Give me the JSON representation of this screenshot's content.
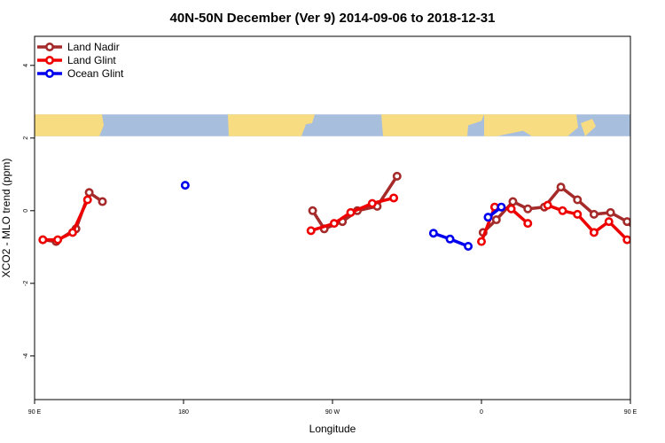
{
  "chart_data": {
    "type": "line",
    "title": "40N-50N December (Ver 9)   2014-09-06 to 2018-12-31",
    "xlabel": "Longitude",
    "ylabel": "XCO2 - MLO trend (ppm)",
    "x_range": [
      90,
      450
    ],
    "ylim": [
      -5.2,
      4.8
    ],
    "x_ticks": [
      {
        "value": 90,
        "label": "90 E"
      },
      {
        "value": 180,
        "label": "180"
      },
      {
        "value": 270,
        "label": "90 W"
      },
      {
        "value": 360,
        "label": "0"
      },
      {
        "value": 450,
        "label": "90 E"
      },
      {
        "value": 540,
        "label": "180"
      }
    ],
    "y_ticks": [
      {
        "value": -4,
        "label": "-4"
      },
      {
        "value": -2,
        "label": "-2"
      },
      {
        "value": 0,
        "label": "0"
      },
      {
        "value": 2,
        "label": "2"
      },
      {
        "value": 4,
        "label": "4"
      }
    ],
    "map_band": {
      "y_from": 2.05,
      "y_to": 2.65,
      "land_color": "#F8DC82",
      "ocean_color": "#A7BEDD"
    },
    "legend_position": "top-left",
    "series": [
      {
        "name": "Land Nadir",
        "color": "#A52A2A",
        "segments": [
          [
            [
              95,
              -0.8
            ],
            [
              103,
              -0.85
            ],
            [
              115,
              -0.5
            ],
            [
              123,
              0.5
            ],
            [
              131,
              0.25
            ]
          ],
          [
            [
              258,
              0
            ],
            [
              265,
              -0.5
            ],
            [
              276,
              -0.3
            ],
            [
              285,
              0
            ],
            [
              297,
              0.12
            ],
            [
              309,
              0.95
            ]
          ],
          [
            [
              361,
              -0.6
            ],
            [
              369,
              -0.25
            ],
            [
              379,
              0.25
            ],
            [
              388,
              0.05
            ],
            [
              398,
              0.1
            ],
            [
              408,
              0.65
            ],
            [
              418,
              0.3
            ],
            [
              428,
              -0.1
            ],
            [
              438,
              -0.05
            ],
            [
              448,
              -0.3
            ],
            [
              458,
              -0.8
            ],
            [
              468,
              -0.8
            ],
            [
              477,
              -0.55
            ],
            [
              487,
              0.5
            ],
            [
              496,
              0.25
            ]
          ]
        ]
      },
      {
        "name": "Land Glint",
        "color": "#EE0000",
        "segments": [
          [
            [
              95,
              -0.8
            ],
            [
              104,
              -0.8
            ],
            [
              113,
              -0.6
            ],
            [
              122,
              0.3
            ]
          ],
          [
            [
              257,
              -0.55
            ],
            [
              271,
              -0.35
            ],
            [
              281,
              -0.05
            ],
            [
              294,
              0.2
            ],
            [
              307,
              0.35
            ]
          ],
          [
            [
              360,
              -0.85
            ],
            [
              368,
              0.1
            ],
            [
              378,
              0.05
            ],
            [
              388,
              -0.35
            ]
          ],
          [
            [
              400,
              0.15
            ],
            [
              409,
              0
            ],
            [
              418,
              -0.1
            ],
            [
              428,
              -0.6
            ],
            [
              437,
              -0.3
            ],
            [
              448,
              -0.8
            ],
            [
              457,
              -0.85
            ],
            [
              466,
              -0.65
            ],
            [
              476,
              0.35
            ]
          ]
        ]
      },
      {
        "name": "Ocean Glint",
        "color": "#0000EE",
        "segments": [
          [
            [
              181,
              0.7
            ]
          ],
          [
            [
              331,
              -0.62
            ],
            [
              341,
              -0.78
            ],
            [
              352,
              -0.98
            ]
          ],
          [
            [
              364,
              -0.18
            ],
            [
              372,
              0.1
            ]
          ]
        ]
      }
    ]
  }
}
